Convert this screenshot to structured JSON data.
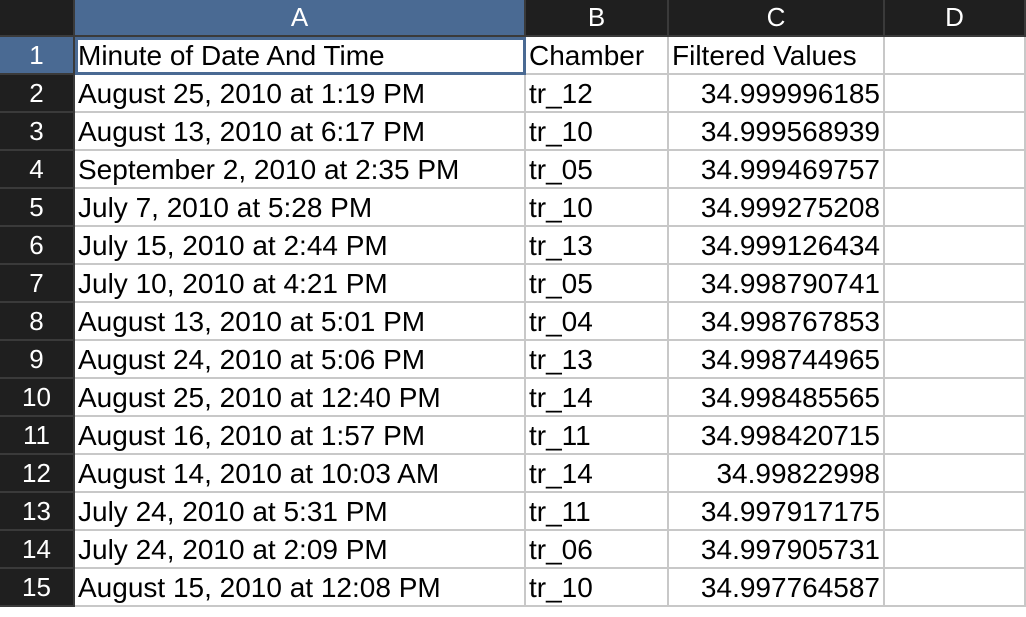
{
  "columns": [
    "A",
    "B",
    "C",
    "D"
  ],
  "selected_column": "A",
  "selected_row": "1",
  "header_row": {
    "row_number": "1",
    "a": "Minute of Date And Time",
    "b": "Chamber",
    "c": "Filtered Values",
    "d": ""
  },
  "rows": [
    {
      "n": "2",
      "a": "August 25, 2010 at 1:19 PM",
      "b": "tr_12",
      "c": "34.999996185"
    },
    {
      "n": "3",
      "a": "August 13, 2010 at 6:17 PM",
      "b": "tr_10",
      "c": "34.999568939"
    },
    {
      "n": "4",
      "a": "September 2, 2010 at 2:35 PM",
      "b": "tr_05",
      "c": "34.999469757"
    },
    {
      "n": "5",
      "a": "July 7, 2010 at 5:28 PM",
      "b": "tr_10",
      "c": "34.999275208"
    },
    {
      "n": "6",
      "a": "July 15, 2010 at 2:44 PM",
      "b": "tr_13",
      "c": "34.999126434"
    },
    {
      "n": "7",
      "a": "July 10, 2010 at 4:21 PM",
      "b": "tr_05",
      "c": "34.998790741"
    },
    {
      "n": "8",
      "a": "August 13, 2010 at 5:01 PM",
      "b": "tr_04",
      "c": "34.998767853"
    },
    {
      "n": "9",
      "a": "August 24, 2010 at 5:06 PM",
      "b": "tr_13",
      "c": "34.998744965"
    },
    {
      "n": "10",
      "a": "August 25, 2010 at 12:40 PM",
      "b": "tr_14",
      "c": "34.998485565"
    },
    {
      "n": "11",
      "a": "August 16, 2010 at 1:57 PM",
      "b": "tr_11",
      "c": "34.998420715"
    },
    {
      "n": "12",
      "a": "August 14, 2010 at 10:03 AM",
      "b": "tr_14",
      "c": "34.99822998"
    },
    {
      "n": "13",
      "a": "July 24, 2010 at 5:31 PM",
      "b": "tr_11",
      "c": "34.997917175"
    },
    {
      "n": "14",
      "a": "July 24, 2010 at 2:09 PM",
      "b": "tr_06",
      "c": "34.997905731"
    },
    {
      "n": "15",
      "a": "August 15, 2010 at 12:08 PM",
      "b": "tr_10",
      "c": "34.997764587"
    }
  ],
  "colors": {
    "header_bg": "#1f1f1f",
    "selected_header_bg": "#4a6a93",
    "gridline": "#c8c8c8"
  }
}
